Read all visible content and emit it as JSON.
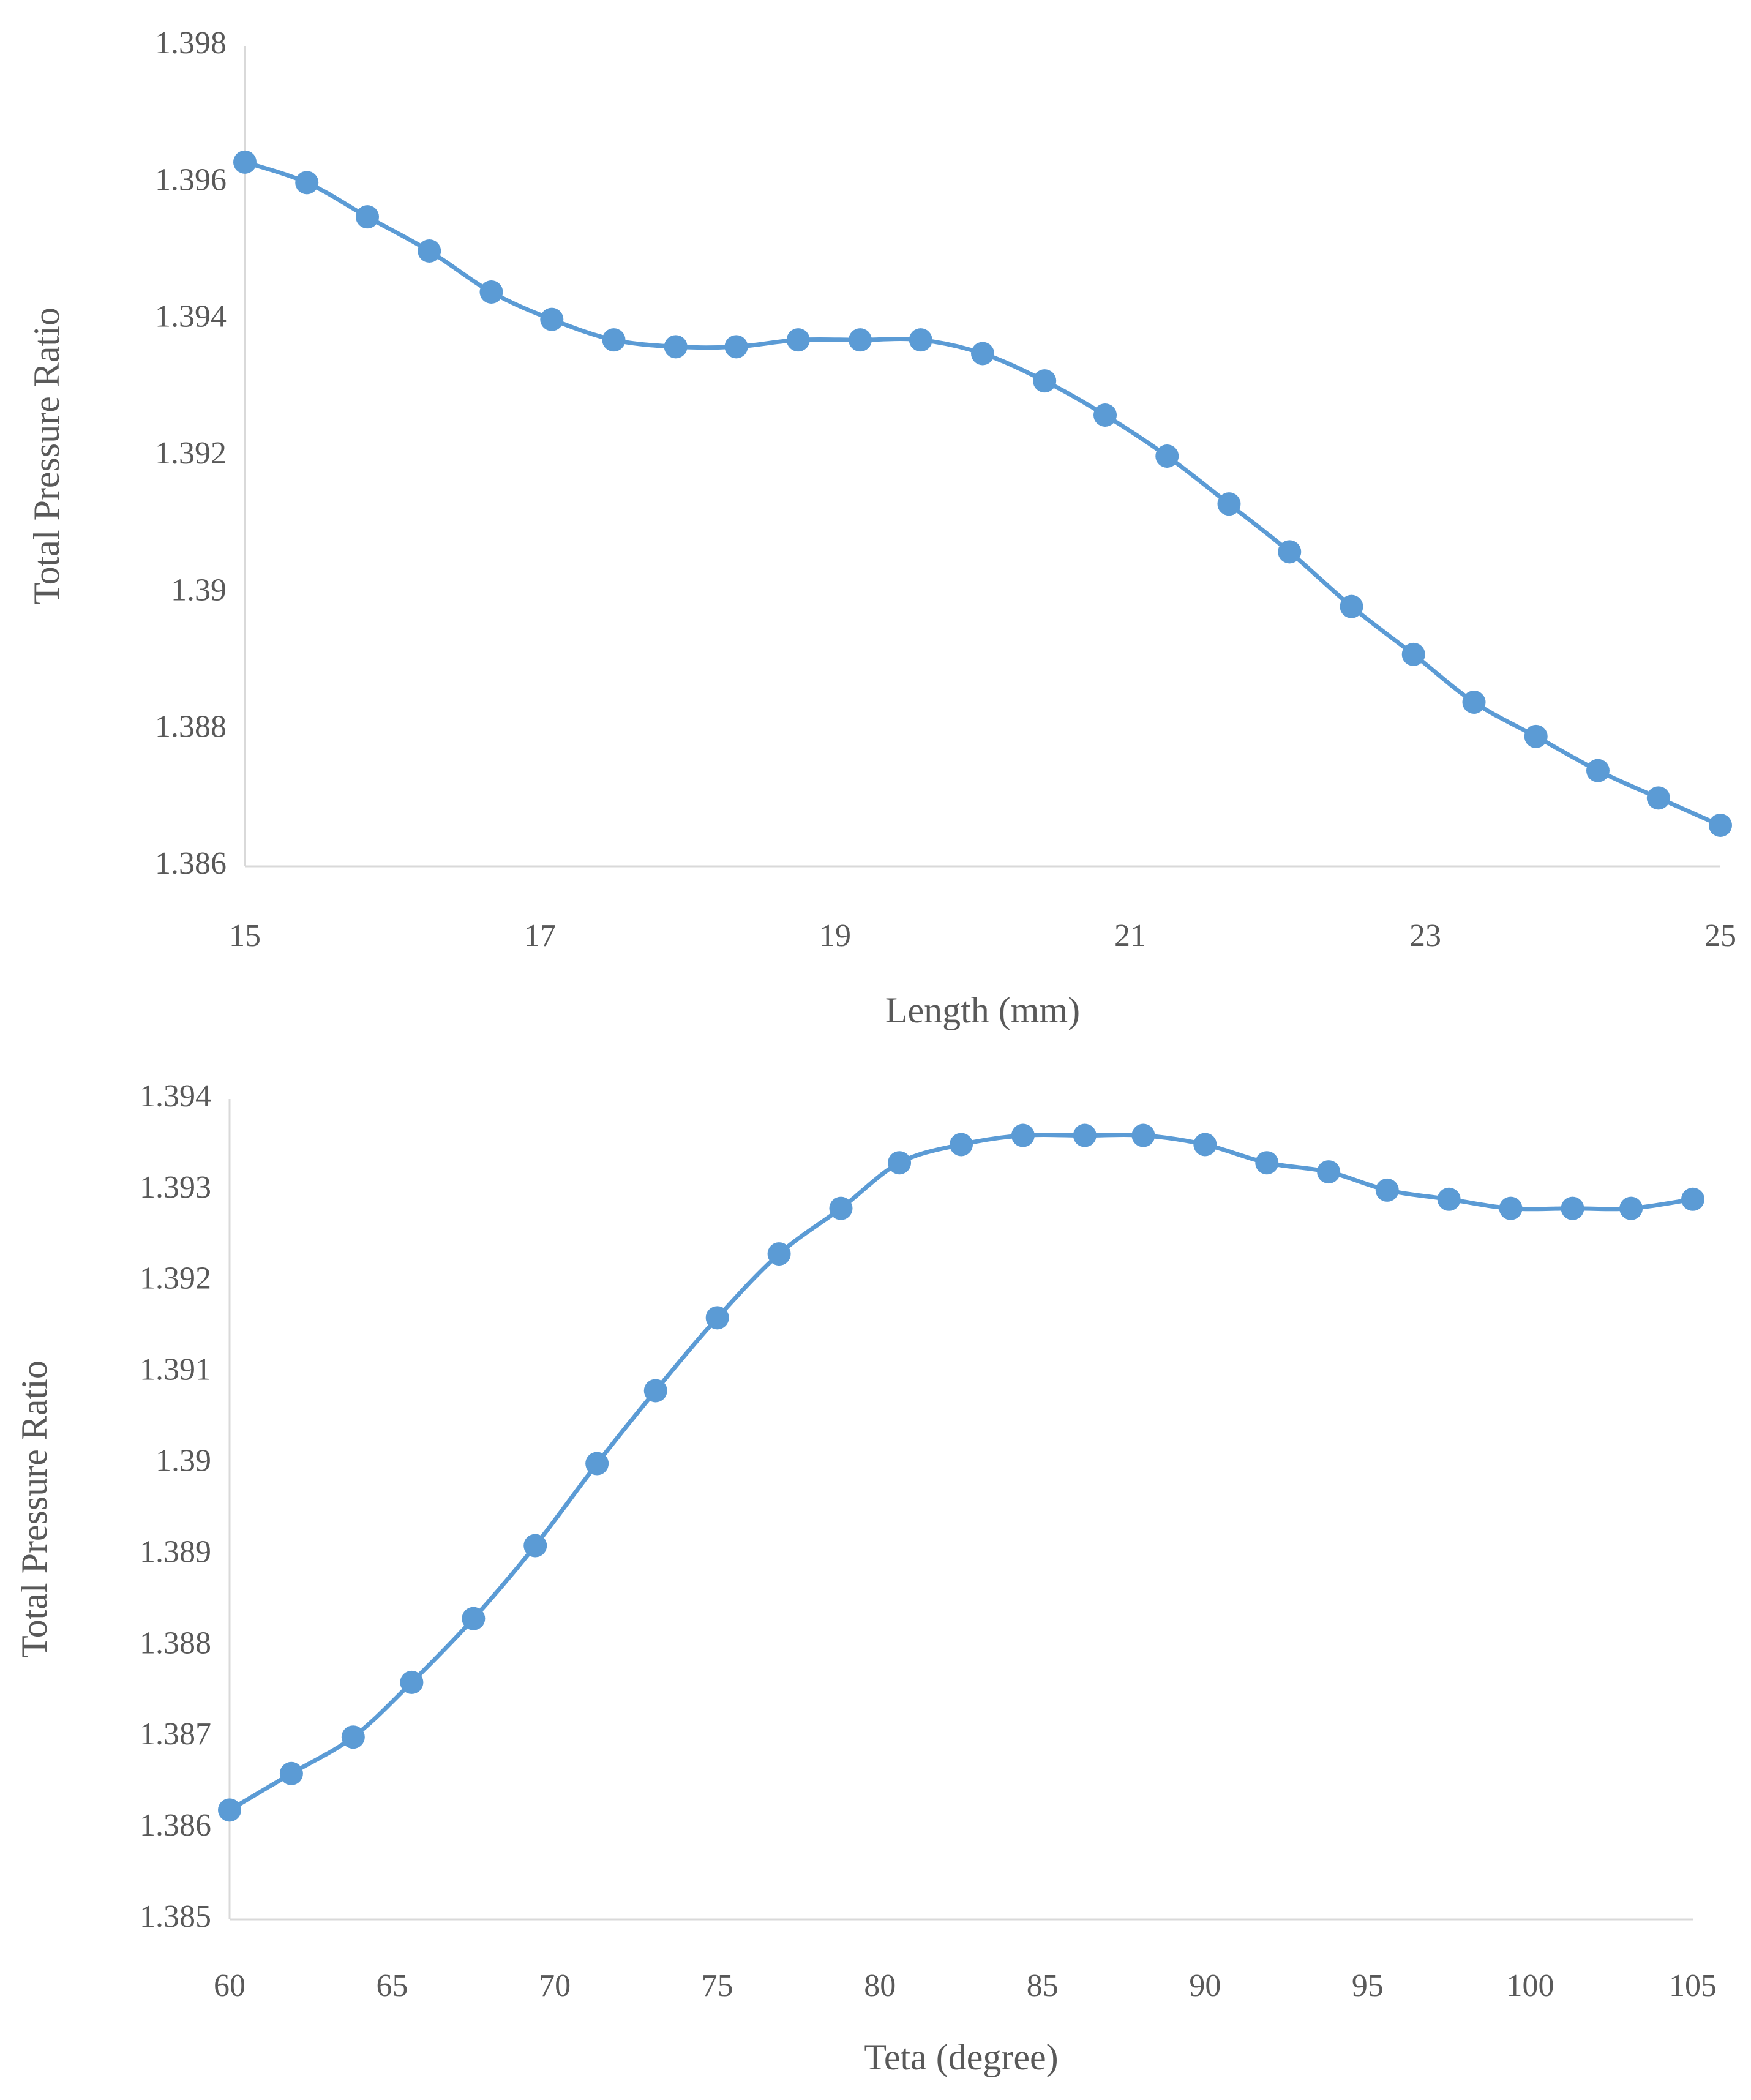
{
  "colors": {
    "series": "#5B9BD5",
    "axis": "#D9D9D9",
    "text": "#595959"
  },
  "chart_data": [
    {
      "type": "line",
      "marker": "circle",
      "smooth": true,
      "title": "",
      "xlabel": "Length (mm)",
      "ylabel": "Total Pressure Ratio",
      "xlim": [
        15,
        25
      ],
      "ylim": [
        1.386,
        1.398
      ],
      "xticks": [
        15,
        17,
        19,
        21,
        23,
        25
      ],
      "xtick_labels": [
        "15",
        "17",
        "19",
        "21",
        "23",
        "25"
      ],
      "yticks": [
        1.386,
        1.388,
        1.39,
        1.392,
        1.394,
        1.396,
        1.398
      ],
      "ytick_labels": [
        "1.386",
        "1.388",
        "1.39",
        "1.392",
        "1.394",
        "1.396",
        "1.398"
      ],
      "grid": false,
      "legend": "none",
      "series": [
        {
          "name": "Total Pressure Ratio",
          "x": [
            15,
            15.42,
            15.83,
            16.25,
            16.67,
            17.08,
            17.5,
            17.92,
            18.33,
            18.75,
            19.17,
            19.58,
            20,
            20.42,
            20.83,
            21.25,
            21.67,
            22.08,
            22.5,
            22.92,
            23.33,
            23.75,
            24.17,
            24.58,
            25
          ],
          "values": [
            1.3963,
            1.396,
            1.3955,
            1.395,
            1.3944,
            1.394,
            1.3937,
            1.3936,
            1.3936,
            1.3937,
            1.3937,
            1.3937,
            1.3935,
            1.3931,
            1.3926,
            1.392,
            1.3913,
            1.3906,
            1.3898,
            1.3891,
            1.3884,
            1.3879,
            1.3874,
            1.387,
            1.3866
          ]
        }
      ]
    },
    {
      "type": "line",
      "marker": "circle",
      "smooth": true,
      "title": "",
      "xlabel": "Teta (degree)",
      "ylabel": "Total Pressure Ratio",
      "xlim": [
        60,
        105
      ],
      "ylim": [
        1.385,
        1.394
      ],
      "xticks": [
        60,
        65,
        70,
        75,
        80,
        85,
        90,
        95,
        100,
        105
      ],
      "xtick_labels": [
        "60",
        "65",
        "70",
        "75",
        "80",
        "85",
        "90",
        "95",
        "100",
        "105"
      ],
      "yticks": [
        1.385,
        1.386,
        1.387,
        1.388,
        1.389,
        1.39,
        1.391,
        1.392,
        1.393,
        1.394
      ],
      "ytick_labels": [
        "1.385",
        "1.386",
        "1.387",
        "1.388",
        "1.389",
        "1.39",
        "1.391",
        "1.392",
        "1.393",
        "1.394"
      ],
      "grid": false,
      "legend": "none",
      "series": [
        {
          "name": "Total Pressure Ratio",
          "x": [
            60,
            61.9,
            63.8,
            65.6,
            67.5,
            69.4,
            71.3,
            73.1,
            75,
            76.9,
            78.8,
            80.6,
            82.5,
            84.4,
            86.3,
            88.1,
            90,
            91.9,
            93.8,
            95.6,
            97.5,
            99.4,
            101.3,
            103.1,
            105
          ],
          "values": [
            1.3862,
            1.3866,
            1.387,
            1.3876,
            1.3883,
            1.3891,
            1.39,
            1.3908,
            1.3916,
            1.3923,
            1.3928,
            1.3933,
            1.3935,
            1.3936,
            1.3936,
            1.3936,
            1.3935,
            1.3933,
            1.3932,
            1.393,
            1.3929,
            1.3928,
            1.3928,
            1.3928,
            1.3929
          ]
        }
      ]
    }
  ]
}
